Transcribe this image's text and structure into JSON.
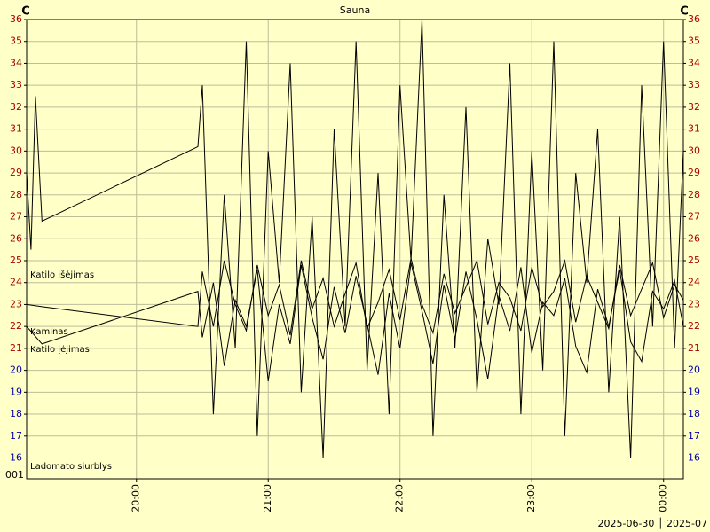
{
  "chart_data": {
    "type": "line",
    "title": "Sauna",
    "y_unit": "C",
    "xlim": [
      1150,
      1449
    ],
    "ylim": [
      15.05,
      36
    ],
    "xticks": [
      {
        "value": 1200,
        "label": "20:00"
      },
      {
        "value": 1260,
        "label": "21:00"
      },
      {
        "value": 1320,
        "label": "22:00"
      },
      {
        "value": 1380,
        "label": "23:00"
      },
      {
        "value": 1440,
        "label": "00:00"
      }
    ],
    "yticks": [
      16,
      17,
      18,
      19,
      20,
      21,
      22,
      23,
      24,
      25,
      26,
      27,
      28,
      29,
      30,
      31,
      32,
      33,
      34,
      35,
      36
    ],
    "ytick_colors": [
      "#0000aa",
      "#0000aa",
      "#0000aa",
      "#0000aa",
      "#0000aa",
      "#aa0000",
      "#aa0000",
      "#aa0000",
      "#aa0000",
      "#aa0000",
      "#aa0000",
      "#aa0000",
      "#aa0000",
      "#aa0000",
      "#aa0000",
      "#aa0000",
      "#aa0000",
      "#aa0000",
      "#aa0000",
      "#aa0000",
      "#aa0000"
    ],
    "bottom_tick_label": "001",
    "date_label": "2025-06-30 │ 2025-07",
    "grid": true,
    "series": [
      {
        "name": "Katilo išėjimas",
        "color": "#000000",
        "x": [
          1150,
          1152,
          1154,
          1157,
          1228,
          1230,
          1235,
          1240,
          1245,
          1250,
          1255,
          1260,
          1265,
          1270,
          1275,
          1280,
          1285,
          1290,
          1295,
          1300,
          1305,
          1310,
          1315,
          1320,
          1325,
          1330,
          1335,
          1340,
          1345,
          1350,
          1355,
          1360,
          1365,
          1370,
          1375,
          1380,
          1385,
          1390,
          1395,
          1400,
          1405,
          1410,
          1415,
          1420,
          1425,
          1430,
          1435,
          1440,
          1445,
          1449
        ],
        "values": [
          29,
          25.5,
          32.5,
          26.8,
          30.2,
          33,
          18,
          28,
          21,
          35,
          17,
          30,
          24,
          34,
          19,
          27,
          16,
          31,
          22,
          35,
          20,
          29,
          18,
          33,
          25,
          36,
          17,
          28,
          21,
          32,
          19,
          26,
          23,
          34,
          18,
          30,
          20,
          35,
          17,
          29,
          24,
          31,
          19,
          27,
          16,
          33,
          22,
          35,
          21,
          30
        ]
      },
      {
        "name": "Kaminas",
        "color": "#000000",
        "x": [
          1150,
          1157,
          1228,
          1230,
          1235,
          1240,
          1245,
          1250,
          1255,
          1260,
          1265,
          1270,
          1275,
          1280,
          1285,
          1290,
          1295,
          1300,
          1305,
          1310,
          1315,
          1320,
          1325,
          1330,
          1335,
          1340,
          1345,
          1350,
          1355,
          1360,
          1365,
          1370,
          1375,
          1380,
          1385,
          1390,
          1395,
          1400,
          1405,
          1410,
          1415,
          1420,
          1425,
          1430,
          1435,
          1440,
          1445,
          1449
        ],
        "values": [
          23,
          22.9,
          22,
          24.5,
          22,
          25,
          23,
          21.8,
          24.8,
          22.5,
          23.9,
          21.6,
          25,
          22.8,
          24.2,
          22,
          23.5,
          24.9,
          21.9,
          23.1,
          24.6,
          22.3,
          25.1,
          23,
          21.7,
          24.4,
          22.6,
          23.8,
          25,
          22.1,
          24,
          23.3,
          21.8,
          24.7,
          22.9,
          23.6,
          25,
          22.2,
          24.3,
          23.1,
          21.9,
          24.8,
          22.5,
          23.7,
          24.9,
          22.4,
          23.9,
          23.2
        ]
      },
      {
        "name": "Katilo įėjimas",
        "color": "#000000",
        "x": [
          1150,
          1157,
          1228,
          1230,
          1235,
          1240,
          1245,
          1250,
          1255,
          1260,
          1265,
          1270,
          1275,
          1280,
          1285,
          1290,
          1295,
          1300,
          1305,
          1310,
          1315,
          1320,
          1325,
          1330,
          1335,
          1340,
          1345,
          1350,
          1355,
          1360,
          1365,
          1370,
          1375,
          1380,
          1385,
          1390,
          1395,
          1400,
          1405,
          1410,
          1415,
          1420,
          1425,
          1430,
          1435,
          1440,
          1445,
          1449
        ],
        "values": [
          22,
          21.2,
          23.6,
          21.5,
          24,
          20.2,
          23.2,
          22,
          24.6,
          19.5,
          23,
          21.2,
          24.8,
          22.4,
          20.5,
          23.8,
          21.7,
          24.3,
          22.1,
          19.8,
          23.5,
          21,
          24.9,
          22.7,
          20.3,
          23.9,
          21.4,
          24.5,
          22.3,
          19.6,
          23.4,
          21.8,
          24.7,
          20.8,
          23.1,
          22.5,
          24.2,
          21.1,
          19.9,
          23.7,
          22,
          24.6,
          21.3,
          20.4,
          23.6,
          22.8,
          24.1,
          22
        ]
      },
      {
        "name": "Ladomato siurblys",
        "color": "#000000",
        "x": [],
        "values": []
      }
    ]
  }
}
